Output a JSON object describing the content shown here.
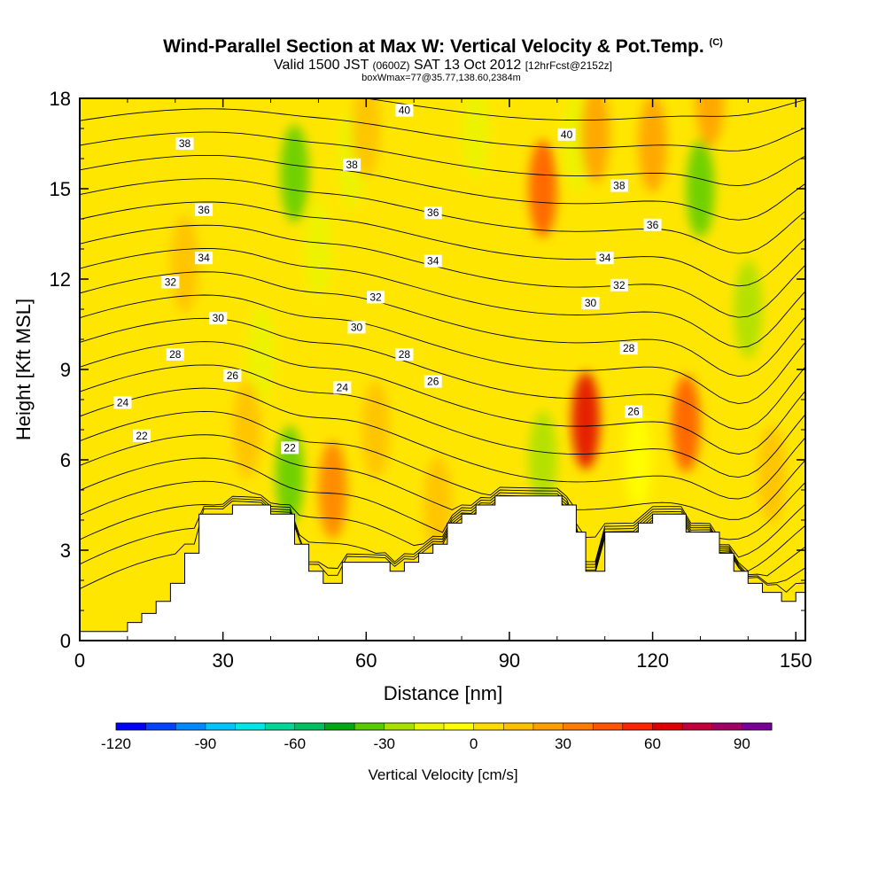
{
  "header": {
    "title": "Wind-Parallel Section at Max W: Vertical Velocity & Pot.Temp.",
    "title_tag": "(C)",
    "valid_prefix": "Valid 1500 JST",
    "valid_z": "(0600Z)",
    "valid_date": "SAT 13 Oct 2012",
    "forecast": "[12hrFcst@2152z]",
    "box_info": "boxWmax=77@35.77,138.60,2384m"
  },
  "chart_data": {
    "type": "heatmap",
    "xlabel": "Distance [nm]",
    "ylabel": "Height [Kft MSL]",
    "xlim": [
      0,
      152
    ],
    "ylim": [
      0,
      18
    ],
    "x_ticks": [
      0,
      30,
      60,
      90,
      120,
      150
    ],
    "y_ticks": [
      0,
      3,
      6,
      9,
      12,
      15,
      18
    ],
    "colorbar": {
      "label": "Vertical Velocity [cm/s]",
      "range": [
        -120,
        100
      ],
      "step": 10,
      "tick_values": [
        -120,
        -90,
        -60,
        -30,
        0,
        30,
        60,
        90
      ],
      "colors": [
        "#0000ff",
        "#0044ff",
        "#0088ff",
        "#00c4ff",
        "#00e6e6",
        "#00d696",
        "#00c060",
        "#00a814",
        "#58cc00",
        "#a8e000",
        "#eaf500",
        "#ffff00",
        "#ffdc00",
        "#ffc000",
        "#ff9e00",
        "#ff7c00",
        "#ff5400",
        "#ff2400",
        "#e00000",
        "#c4003c",
        "#a00064",
        "#780096"
      ]
    },
    "terrain_kft": [
      [
        0,
        0.3
      ],
      [
        10,
        0.3
      ],
      [
        10,
        0.6
      ],
      [
        13,
        0.6
      ],
      [
        13,
        0.9
      ],
      [
        16,
        0.9
      ],
      [
        16,
        1.3
      ],
      [
        19,
        1.3
      ],
      [
        19,
        1.9
      ],
      [
        22,
        1.9
      ],
      [
        22,
        2.9
      ],
      [
        25,
        2.9
      ],
      [
        25,
        4.2
      ],
      [
        32,
        4.2
      ],
      [
        32,
        4.5
      ],
      [
        40,
        4.5
      ],
      [
        40,
        4.2
      ],
      [
        45,
        4.2
      ],
      [
        45,
        3.2
      ],
      [
        48,
        3.2
      ],
      [
        48,
        2.3
      ],
      [
        51,
        2.3
      ],
      [
        51,
        1.9
      ],
      [
        55,
        1.9
      ],
      [
        55,
        2.6
      ],
      [
        65,
        2.6
      ],
      [
        65,
        2.3
      ],
      [
        68,
        2.3
      ],
      [
        68,
        2.6
      ],
      [
        71,
        2.6
      ],
      [
        71,
        2.9
      ],
      [
        74,
        2.9
      ],
      [
        74,
        3.2
      ],
      [
        77,
        3.2
      ],
      [
        77,
        3.9
      ],
      [
        80,
        3.9
      ],
      [
        80,
        4.2
      ],
      [
        83,
        4.2
      ],
      [
        83,
        4.5
      ],
      [
        87,
        4.5
      ],
      [
        87,
        4.8
      ],
      [
        101,
        4.8
      ],
      [
        101,
        4.5
      ],
      [
        104,
        4.5
      ],
      [
        104,
        3.6
      ],
      [
        106,
        3.6
      ],
      [
        106,
        2.3
      ],
      [
        110,
        2.3
      ],
      [
        110,
        3.6
      ],
      [
        117,
        3.6
      ],
      [
        117,
        3.9
      ],
      [
        120,
        3.9
      ],
      [
        120,
        4.2
      ],
      [
        127,
        4.2
      ],
      [
        127,
        3.6
      ],
      [
        134,
        3.6
      ],
      [
        134,
        2.9
      ],
      [
        137,
        2.9
      ],
      [
        137,
        2.3
      ],
      [
        140,
        2.3
      ],
      [
        140,
        1.9
      ],
      [
        143,
        1.9
      ],
      [
        143,
        1.6
      ],
      [
        147,
        1.6
      ],
      [
        147,
        1.3
      ],
      [
        150,
        1.3
      ],
      [
        150,
        1.6
      ],
      [
        152,
        1.6
      ]
    ],
    "potential_temperature_C": {
      "min": 20,
      "max": 41,
      "step": 1,
      "labels": [
        {
          "value": "38",
          "x": 22,
          "y": 16.5
        },
        {
          "value": "36",
          "x": 26,
          "y": 14.3
        },
        {
          "value": "34",
          "x": 26,
          "y": 12.7
        },
        {
          "value": "32",
          "x": 19,
          "y": 11.9
        },
        {
          "value": "30",
          "x": 29,
          "y": 10.7
        },
        {
          "value": "28",
          "x": 20,
          "y": 9.5
        },
        {
          "value": "26",
          "x": 32,
          "y": 8.8
        },
        {
          "value": "24",
          "x": 9,
          "y": 7.9
        },
        {
          "value": "22",
          "x": 13,
          "y": 6.8
        },
        {
          "value": "22",
          "x": 44,
          "y": 6.4
        },
        {
          "value": "40",
          "x": 68,
          "y": 17.6
        },
        {
          "value": "38",
          "x": 57,
          "y": 15.8
        },
        {
          "value": "36",
          "x": 74,
          "y": 14.2
        },
        {
          "value": "34",
          "x": 74,
          "y": 12.6
        },
        {
          "value": "32",
          "x": 62,
          "y": 11.4
        },
        {
          "value": "30",
          "x": 58,
          "y": 10.4
        },
        {
          "value": "28",
          "x": 68,
          "y": 9.5
        },
        {
          "value": "26",
          "x": 74,
          "y": 8.6
        },
        {
          "value": "24",
          "x": 55,
          "y": 8.4
        },
        {
          "value": "40",
          "x": 102,
          "y": 16.8
        },
        {
          "value": "38",
          "x": 113,
          "y": 15.1
        },
        {
          "value": "36",
          "x": 120,
          "y": 13.8
        },
        {
          "value": "34",
          "x": 110,
          "y": 12.7
        },
        {
          "value": "32",
          "x": 113,
          "y": 11.8
        },
        {
          "value": "30",
          "x": 107,
          "y": 11.2
        },
        {
          "value": "28",
          "x": 115,
          "y": 9.7
        },
        {
          "value": "26",
          "x": 116,
          "y": 7.6
        }
      ]
    },
    "vertical_velocity_features_cms": [
      {
        "x": 45,
        "y": 15.5,
        "value": -40
      },
      {
        "x": 57,
        "y": 16.0,
        "value": -15
      },
      {
        "x": 50,
        "y": 13.0,
        "value": -20
      },
      {
        "x": 44,
        "y": 5.5,
        "value": -40
      },
      {
        "x": 38,
        "y": 9.5,
        "value": -15
      },
      {
        "x": 83,
        "y": 17.0,
        "value": -15
      },
      {
        "x": 97,
        "y": 6.0,
        "value": -30
      },
      {
        "x": 104,
        "y": 16.5,
        "value": -20
      },
      {
        "x": 130,
        "y": 15.0,
        "value": -40
      },
      {
        "x": 140,
        "y": 11.0,
        "value": -30
      },
      {
        "x": 117,
        "y": 6.0,
        "value": -10
      },
      {
        "x": 97,
        "y": 15.0,
        "value": 40
      },
      {
        "x": 106,
        "y": 7.3,
        "value": 60
      },
      {
        "x": 53,
        "y": 5.0,
        "value": 30
      },
      {
        "x": 127,
        "y": 7.2,
        "value": 40
      },
      {
        "x": 120,
        "y": 16.5,
        "value": 25
      },
      {
        "x": 108,
        "y": 16.8,
        "value": 20
      },
      {
        "x": 132,
        "y": 18.0,
        "value": 20
      },
      {
        "x": 60,
        "y": 17.0,
        "value": 15
      },
      {
        "x": 22,
        "y": 12.5,
        "value": 15
      },
      {
        "x": 35,
        "y": 7.0,
        "value": 15
      },
      {
        "x": 62,
        "y": 7.0,
        "value": 15
      },
      {
        "x": 75,
        "y": 4.5,
        "value": 10
      },
      {
        "x": 145,
        "y": 5.5,
        "value": 10
      }
    ]
  }
}
